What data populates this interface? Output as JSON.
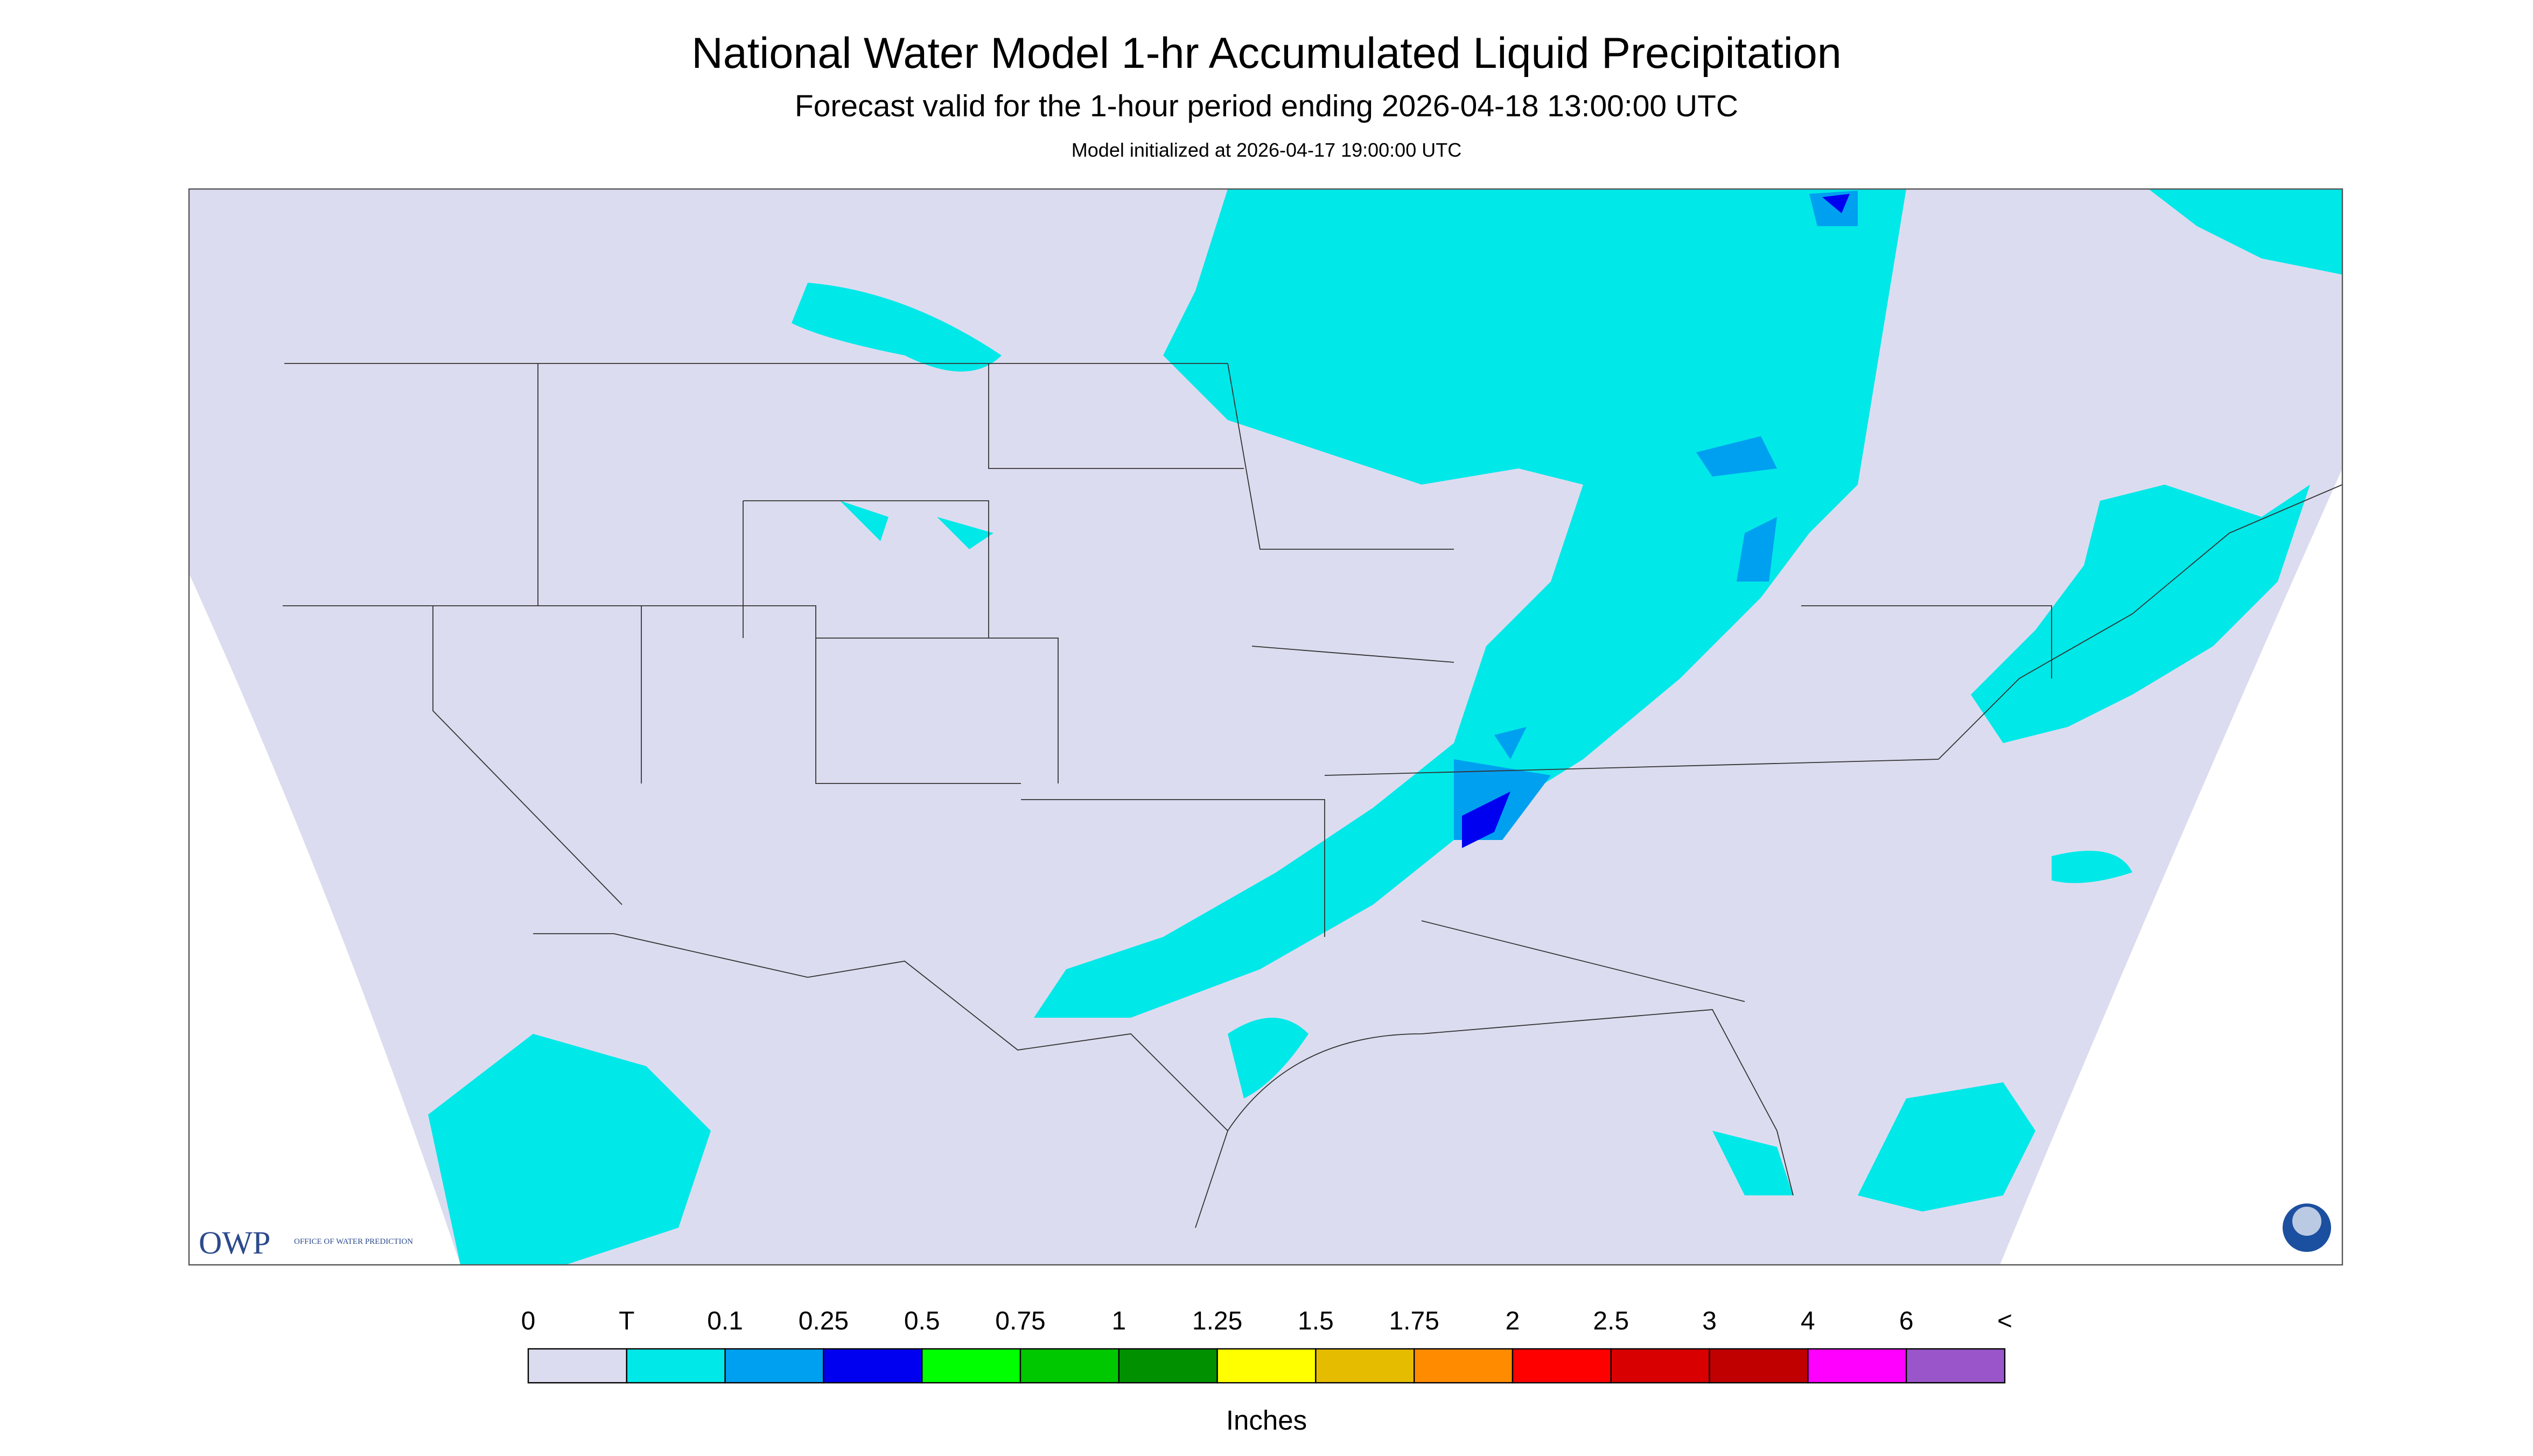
{
  "header": {
    "title": "National Water Model 1-hr Accumulated Liquid Precipitation",
    "subtitle": "Forecast valid for the 1-hour period ending 2026-04-18 13:00:00 UTC",
    "init": "Model initialized at 2026-04-17 19:00:00 UTC"
  },
  "legend": {
    "labels": [
      "0",
      "T",
      "0.1",
      "0.25",
      "0.5",
      "0.75",
      "1",
      "1.25",
      "1.5",
      "1.75",
      "2",
      "2.5",
      "3",
      "4",
      "6",
      "<"
    ],
    "colors": [
      "#dcdcf0",
      "#00e8e8",
      "#00a0f0",
      "#0000f0",
      "#00ff00",
      "#00c800",
      "#009000",
      "#ffff00",
      "#e6bc00",
      "#ff8c00",
      "#ff0000",
      "#d80000",
      "#c00000",
      "#ff00ff",
      "#9955c9"
    ],
    "units": "Inches"
  },
  "logos": {
    "owp": "OWP",
    "owp_full": "OFFICE OF WATER PREDICTION"
  }
}
